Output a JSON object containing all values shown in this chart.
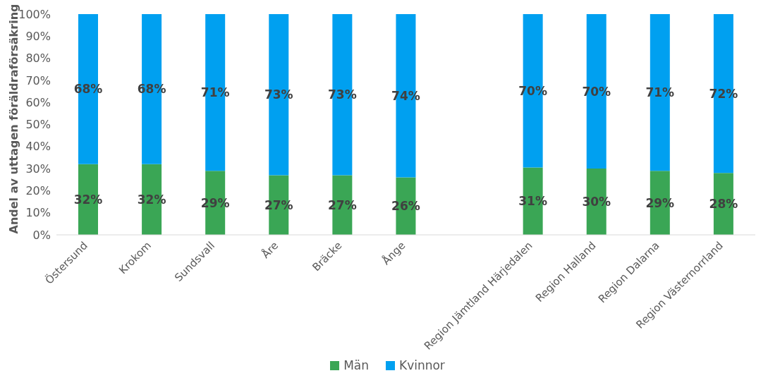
{
  "chart_data": {
    "type": "bar",
    "stacked": true,
    "ylabel": "Andel av uttagen föräldraförsäkring",
    "categories": [
      "Östersund",
      "Krokom",
      "Sundsvall",
      "Åre",
      "Bräcke",
      "Ånge",
      null,
      "Region Jämtland Härjedalen",
      "Region Halland",
      "Region Dalarna",
      "Region Västernorrland"
    ],
    "series": [
      {
        "name": "Män",
        "color": "#3aa655",
        "values": [
          32,
          32,
          29,
          27,
          27,
          26,
          null,
          30.5,
          30,
          29,
          28
        ],
        "value_labels": [
          "32%",
          "32%",
          "29%",
          "27%",
          "27%",
          "26%",
          null,
          "31%",
          "30%",
          "29%",
          "28%"
        ]
      },
      {
        "name": "Kvinnor",
        "color": "#00a0f0",
        "values": [
          68,
          68,
          71,
          73,
          73,
          74,
          null,
          69.5,
          70,
          71,
          72
        ],
        "value_labels": [
          "68%",
          "68%",
          "71%",
          "73%",
          "73%",
          "74%",
          null,
          "70%",
          "70%",
          "71%",
          "72%"
        ]
      }
    ],
    "ylim": [
      0,
      100
    ],
    "yticks": [
      {
        "value": 0,
        "label": "0%"
      },
      {
        "value": 10,
        "label": "10%"
      },
      {
        "value": 20,
        "label": "20%"
      },
      {
        "value": 30,
        "label": "30%"
      },
      {
        "value": 40,
        "label": "40%"
      },
      {
        "value": 50,
        "label": "50%"
      },
      {
        "value": 60,
        "label": "60%"
      },
      {
        "value": 70,
        "label": "70%"
      },
      {
        "value": 80,
        "label": "80%"
      },
      {
        "value": 90,
        "label": "90%"
      },
      {
        "value": 100,
        "label": "100%"
      }
    ],
    "legend": "bottom"
  }
}
